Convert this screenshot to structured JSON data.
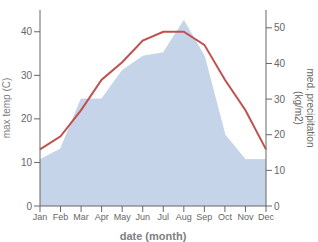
{
  "chart_data": {
    "type": "line",
    "categories": [
      "Jan",
      "Feb",
      "Mar",
      "Apr",
      "May",
      "Jun",
      "Jul",
      "Aug",
      "Sep",
      "Oct",
      "Nov",
      "Dec"
    ],
    "series": [
      {
        "type": "area",
        "axis": "y2",
        "color": "#c5d4e8",
        "values": [
          13,
          16,
          30,
          30,
          38,
          42,
          43,
          52,
          42,
          20,
          13,
          13
        ]
      },
      {
        "type": "line",
        "color": "#c0504d",
        "values": [
          13,
          16,
          22,
          29,
          33,
          38,
          40,
          40,
          37,
          29,
          22,
          13
        ]
      }
    ],
    "x_label": "date (month)",
    "y_label": "max temp (C)",
    "y2_label": "med. precipitation\n(kg/m2)",
    "ylim": [
      0,
      45
    ],
    "yticks": [
      0,
      10,
      20,
      30,
      40
    ],
    "y2lim": [
      0,
      55
    ],
    "y2ticks": [
      0,
      10,
      20,
      30,
      40,
      50
    ],
    "grid": false
  }
}
